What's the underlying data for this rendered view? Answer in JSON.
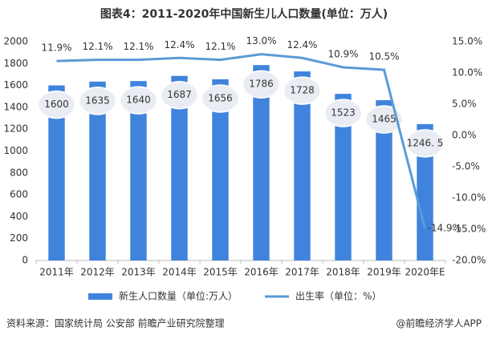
{
  "chart_data": {
    "type": "bar_line",
    "title": "图表4：2011-2020年中国新生儿人口数量(单位：万人)",
    "categories": [
      "2011年",
      "2012年",
      "2013年",
      "2014年",
      "2015年",
      "2016年",
      "2017年",
      "2018年",
      "2019年",
      "2020年E"
    ],
    "series": [
      {
        "name": "新生人口数量（单位:万人）",
        "type": "bar",
        "color": "#3f83dd",
        "values": [
          1600,
          1635,
          1640,
          1687,
          1656,
          1786,
          1728,
          1523,
          1465,
          1246.5
        ],
        "value_labels": [
          "1600",
          "1635",
          "1640",
          "1687",
          "1656",
          "1786",
          "1728",
          "1523",
          "1465",
          "1246. 5"
        ]
      },
      {
        "name": "出生率（单位：%）",
        "type": "line",
        "axis": "y2",
        "color": "#5b9bd5",
        "values": [
          11.9,
          12.1,
          12.1,
          12.4,
          12.1,
          13.0,
          12.4,
          10.9,
          10.5,
          -14.9
        ],
        "value_labels": [
          "11.9%",
          "12.1%",
          "12.1%",
          "12.4%",
          "12.1%",
          "13.0%",
          "12.4%",
          "10.9%",
          "10.5%",
          "-14.9%"
        ]
      }
    ],
    "ylim": [
      0,
      2000
    ],
    "yticks": [
      0,
      200,
      400,
      600,
      800,
      1000,
      1200,
      1400,
      1600,
      1800,
      2000
    ],
    "y2lim": [
      -20,
      15
    ],
    "y2ticks": [
      {
        "value": -20,
        "label": "-20.0%"
      },
      {
        "value": -15,
        "label": "-15.0%"
      },
      {
        "value": -10,
        "label": "-10.0%"
      },
      {
        "value": -5,
        "label": "-5.0%"
      },
      {
        "value": 0,
        "label": "0.0%"
      },
      {
        "value": 5,
        "label": "5.0%"
      },
      {
        "value": 10,
        "label": "10.0%"
      },
      {
        "value": 15,
        "label": "15.0%"
      }
    ],
    "source": "资料来源：国家统计局 公安部 前瞻产业研究院整理",
    "footer": "@前瞻经济学人APP"
  }
}
